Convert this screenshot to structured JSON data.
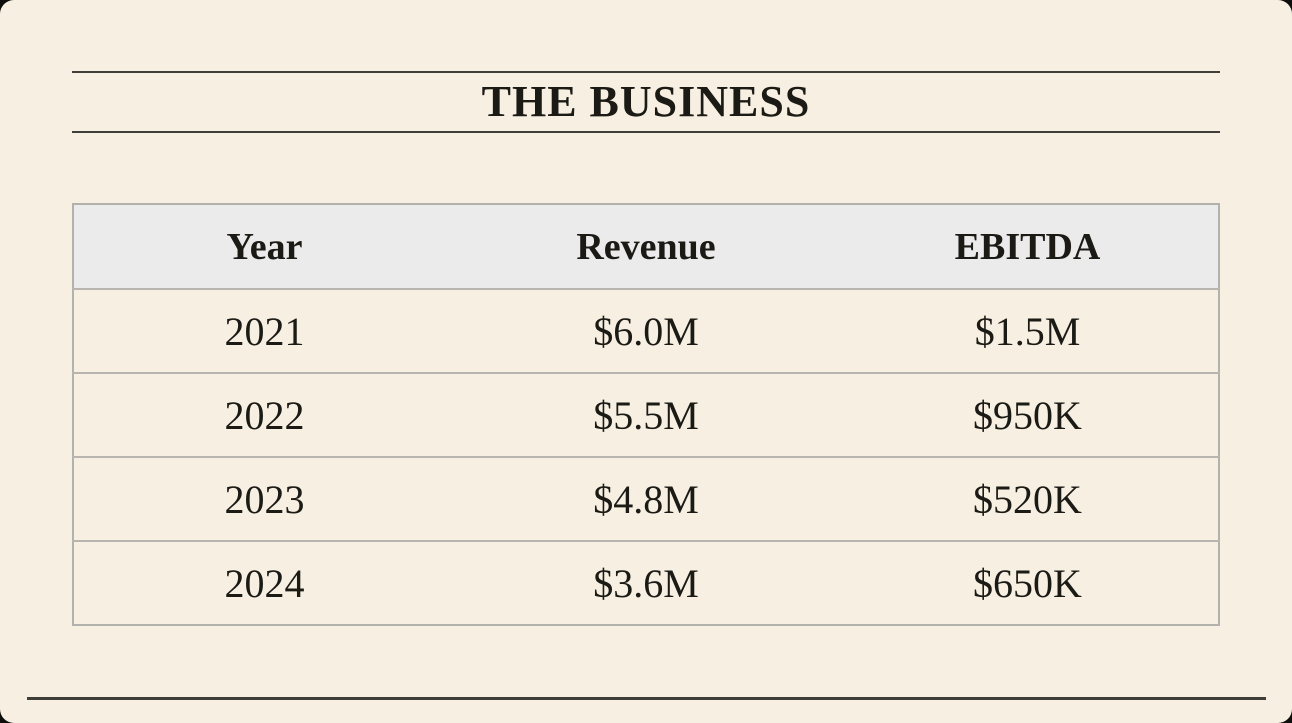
{
  "colors": {
    "backdrop": "#0e0f0c",
    "background": "#f7f0e2",
    "text": "#1b1a15",
    "dark_rule": "#3f3e38",
    "table_border": "#b3b1ab",
    "row_border": "#b7b5ae",
    "header_bg": "#ebebec"
  },
  "header": {
    "title": "THE BUSINESS"
  },
  "table": {
    "columns": [
      "Year",
      "Revenue",
      "EBITDA"
    ],
    "rows": [
      [
        "2021",
        "$6.0M",
        "$1.5M"
      ],
      [
        "2022",
        "$5.5M",
        "$950K"
      ],
      [
        "2023",
        "$4.8M",
        "$520K"
      ],
      [
        "2024",
        "$3.6M",
        "$650K"
      ]
    ]
  }
}
